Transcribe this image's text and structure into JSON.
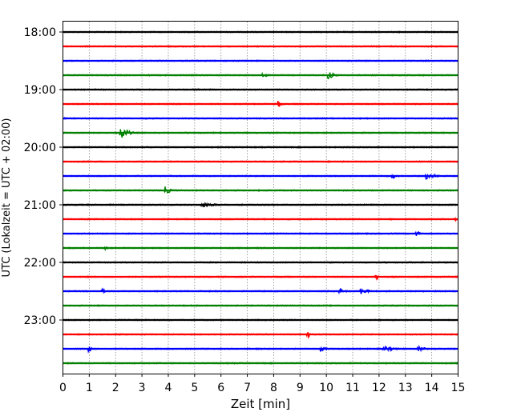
{
  "chart_data": {
    "type": "line",
    "subtype": "helicorder-seismogram",
    "xlabel": "Zeit  [min]",
    "ylabel": "UTC (Lokalzeit = UTC + 02:00)",
    "xlim": [
      0,
      15
    ],
    "x_ticks": [
      "0",
      "1",
      "2",
      "3",
      "4",
      "5",
      "6",
      "7",
      "8",
      "9",
      "10",
      "11",
      "12",
      "13",
      "14",
      "15"
    ],
    "y_tick_labels": [
      {
        "trace": 0,
        "label": "18:00"
      },
      {
        "trace": 4,
        "label": "19:00"
      },
      {
        "trace": 8,
        "label": "20:00"
      },
      {
        "trace": 12,
        "label": "21:00"
      },
      {
        "trace": 16,
        "label": "22:00"
      },
      {
        "trace": 20,
        "label": "23:00"
      }
    ],
    "trace_minutes": 15,
    "trace_count": 24,
    "start_time": "18:00",
    "colors": [
      "#000000",
      "#ff0000",
      "#0000ff",
      "#008000"
    ],
    "grid": "vertical dotted at each minute",
    "events": [
      {
        "trace": 3,
        "minute": 7.6,
        "amp": 2,
        "dur": 0.6
      },
      {
        "trace": 3,
        "minute": 10.1,
        "amp": 5,
        "dur": 0.4
      },
      {
        "trace": 5,
        "minute": 8.2,
        "amp": 4,
        "dur": 0.2
      },
      {
        "trace": 7,
        "minute": 2.2,
        "amp": 10,
        "dur": 0.5
      },
      {
        "trace": 10,
        "minute": 12.5,
        "amp": 3,
        "dur": 0.5
      },
      {
        "trace": 10,
        "minute": 13.8,
        "amp": 4,
        "dur": 0.8
      },
      {
        "trace": 11,
        "minute": 3.9,
        "amp": 5,
        "dur": 0.4
      },
      {
        "trace": 12,
        "minute": 5.3,
        "amp": 2.5,
        "dur": 1.6
      },
      {
        "trace": 13,
        "minute": 14.9,
        "amp": 2,
        "dur": 0.2
      },
      {
        "trace": 14,
        "minute": 13.4,
        "amp": 4,
        "dur": 0.4
      },
      {
        "trace": 15,
        "minute": 1.6,
        "amp": 2.5,
        "dur": 0.2
      },
      {
        "trace": 17,
        "minute": 11.9,
        "amp": 6,
        "dur": 0.15
      },
      {
        "trace": 18,
        "minute": 1.5,
        "amp": 3,
        "dur": 0.2
      },
      {
        "trace": 18,
        "minute": 10.5,
        "amp": 3,
        "dur": 0.5
      },
      {
        "trace": 18,
        "minute": 11.3,
        "amp": 4,
        "dur": 0.6
      },
      {
        "trace": 21,
        "minute": 9.3,
        "amp": 5,
        "dur": 0.15
      },
      {
        "trace": 22,
        "minute": 1.0,
        "amp": 4,
        "dur": 0.2
      },
      {
        "trace": 22,
        "minute": 9.8,
        "amp": 3,
        "dur": 0.4
      },
      {
        "trace": 22,
        "minute": 12.2,
        "amp": 3,
        "dur": 1.0
      },
      {
        "trace": 22,
        "minute": 13.5,
        "amp": 3,
        "dur": 0.7
      }
    ]
  }
}
